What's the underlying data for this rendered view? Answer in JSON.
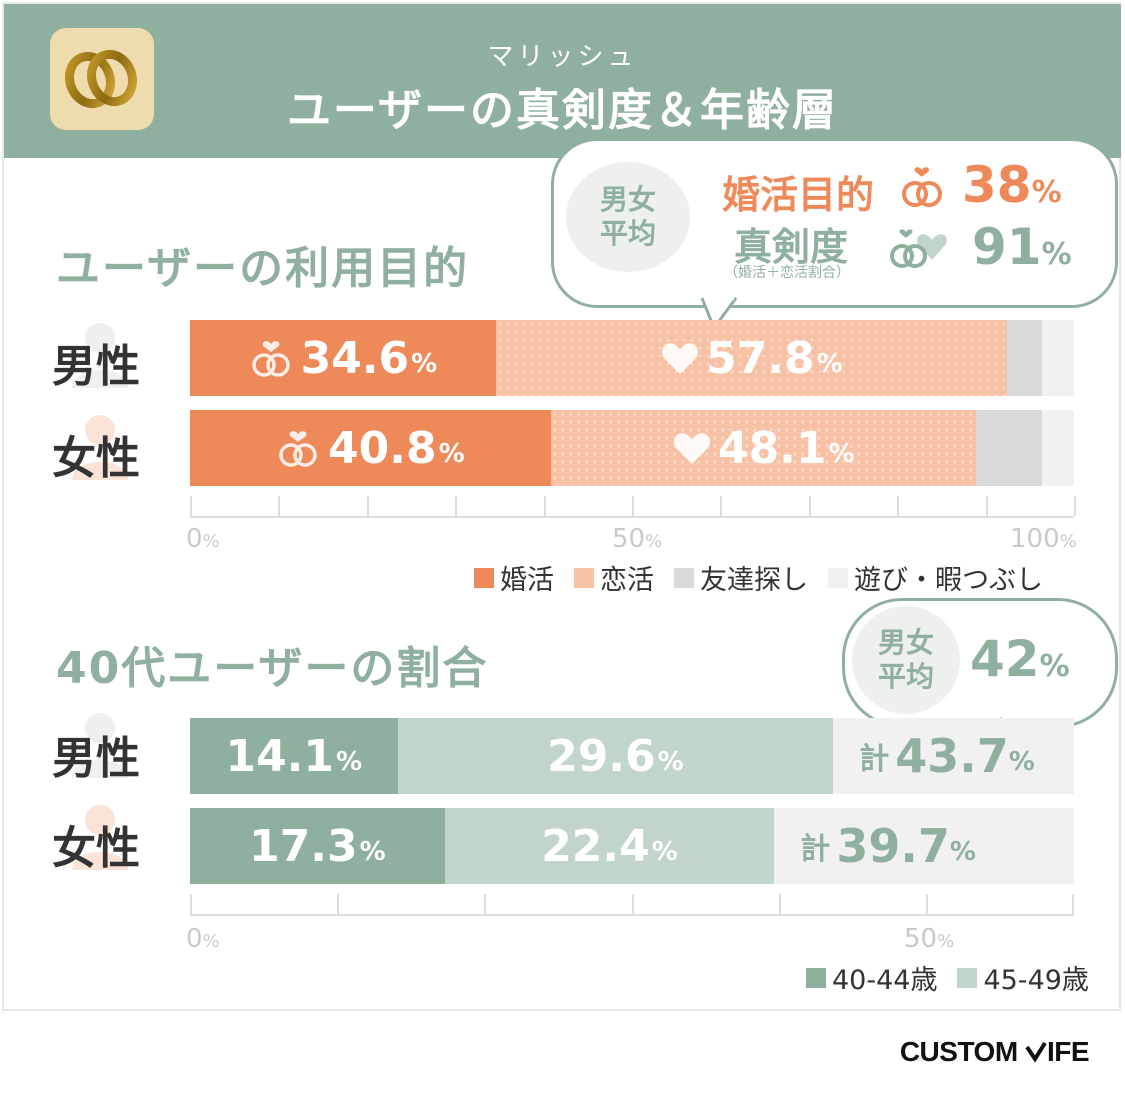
{
  "header": {
    "subtitle": "マリッシュ",
    "title": "ユーザーの真剣度＆年齢層"
  },
  "colors": {
    "header_green": "#8faf9f",
    "konkatsu": "#ee8a5a",
    "renkatsu": "#f7c1a5",
    "tomodachi": "#dadada",
    "asobi": "#f1f1f1",
    "age_40_44": "#8faf9f",
    "age_45_49": "#c2d5cb"
  },
  "purpose_section": {
    "title": "ユーザーの利用目的",
    "bubble": {
      "avg_label_1": "男女",
      "avg_label_2": "平均",
      "purpose_label": "婚活目的",
      "purpose_value": "38",
      "seriousness_label": "真剣度",
      "seriousness_note": "（婚活＋恋活割合）",
      "seriousness_value": "91",
      "pct": "%"
    },
    "rows": [
      {
        "label": "男性",
        "konkatsu": "34.6",
        "renkatsu": "57.8"
      },
      {
        "label": "女性",
        "konkatsu": "40.8",
        "renkatsu": "48.1"
      }
    ],
    "axis": {
      "t0": "0",
      "t50": "50",
      "t100": "100",
      "pct": "%"
    },
    "legend": [
      "婚活",
      "恋活",
      "友達探し",
      "遊び・暇つぶし"
    ]
  },
  "age_section": {
    "title": "40代ユーザーの割合",
    "bubble": {
      "avg_label_1": "男女",
      "avg_label_2": "平均",
      "value": "42",
      "pct": "%"
    },
    "rows": [
      {
        "label": "男性",
        "a40_44": "14.1",
        "a45_49": "29.6",
        "total_label": "計",
        "total": "43.7"
      },
      {
        "label": "女性",
        "a40_44": "17.3",
        "a45_49": "22.4",
        "total_label": "計",
        "total": "39.7"
      }
    ],
    "axis": {
      "t0": "0",
      "t50": "50",
      "pct": "%"
    },
    "legend": [
      "40-44歳",
      "45-49歳"
    ]
  },
  "chart_data": [
    {
      "type": "bar",
      "title": "ユーザーの利用目的",
      "categories": [
        "男性",
        "女性"
      ],
      "series": [
        {
          "name": "婚活",
          "values": [
            34.6,
            40.8
          ]
        },
        {
          "name": "恋活",
          "values": [
            57.8,
            48.1
          ]
        },
        {
          "name": "友達探し",
          "values": [
            4.0,
            7.5
          ]
        },
        {
          "name": "遊び・暇つぶし",
          "values": [
            3.6,
            3.6
          ]
        }
      ],
      "stacked": true,
      "orientation": "horizontal",
      "xlim": [
        0,
        100
      ],
      "annotations": [
        "男女平均 婚活目的 38%",
        "真剣度（婚活＋恋活割合） 91%"
      ]
    },
    {
      "type": "bar",
      "title": "40代ユーザーの割合",
      "categories": [
        "男性",
        "女性"
      ],
      "series": [
        {
          "name": "40-44歳",
          "values": [
            14.1,
            17.3
          ]
        },
        {
          "name": "45-49歳",
          "values": [
            29.6,
            22.4
          ]
        }
      ],
      "stacked": true,
      "orientation": "horizontal",
      "xlim": [
        0,
        60
      ],
      "totals": [
        43.7,
        39.7
      ],
      "annotations": [
        "男女平均 42%"
      ]
    }
  ],
  "footer": {
    "brand_a": "CUSTOM ",
    "brand_b": "IFE"
  }
}
